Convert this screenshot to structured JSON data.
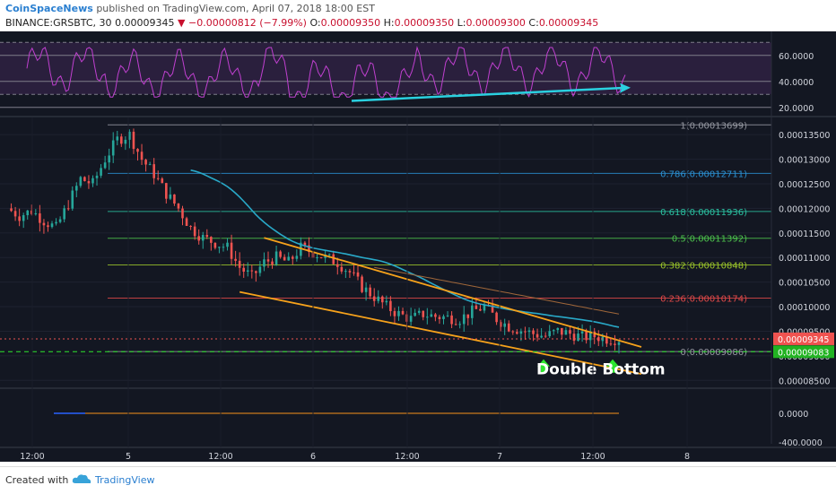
{
  "header": {
    "publisher": "CoinSpaceNews",
    "published_text": "published on TradingView.com, April 07, 2018 18:00 EST",
    "symbol": "BINANCE:GRSBTC, 30",
    "last": "0.00009345",
    "change": "−0.00000812 (−7.99%)",
    "o_label": "O:",
    "o_val": "0.00009350",
    "h_label": "H:",
    "h_val": "0.00009350",
    "l_label": "L:",
    "l_val": "0.00009300",
    "c_label": "C:",
    "c_val": "0.00009345"
  },
  "footer": {
    "created_with": "Created with",
    "brand": "TradingView"
  },
  "colors": {
    "bg": "#131722",
    "rsi": "#c040d0",
    "candle_up": "#26a69a",
    "candle_down": "#ef5350",
    "wedge": "#f7a21b",
    "ma": "#29a9c8",
    "annotation_arrow": "#2ad1e0",
    "bottom_arrow": "#2ee62e"
  },
  "chart_data": {
    "type": "candlestick",
    "symbol": "GRSBTC",
    "exchange": "BINANCE",
    "interval": "30",
    "x_ticks": [
      "12:00",
      "5",
      "12:00",
      "6",
      "12:00",
      "7",
      "12:00",
      "8"
    ],
    "y_ticks": [
      "0.00013500",
      "0.00013000",
      "0.00012500",
      "0.00012000",
      "0.00011500",
      "0.00011000",
      "0.00010500",
      "0.00010000",
      "0.00009500",
      "0.00009000",
      "0.00008500"
    ],
    "ylim": [
      8.45e-05,
      0.0001385
    ],
    "price_badges": {
      "last": "0.00009345",
      "support": "0.00009083"
    },
    "fibonacci": [
      {
        "label": "1(0.00013699)",
        "value": 0.00013699,
        "color": "#9598a1"
      },
      {
        "label": "0.786(0.00012711)",
        "value": 0.00012711,
        "color": "#2b8fd0"
      },
      {
        "label": "0.618(0.00011936)",
        "value": 0.00011936,
        "color": "#2bc0a0"
      },
      {
        "label": "0.5(0.00011392)",
        "value": 0.00011392,
        "color": "#4cc24c"
      },
      {
        "label": "0.382(0.00010848)",
        "value": 0.00010848,
        "color": "#9bc42a"
      },
      {
        "label": "0.236(0.00010174)",
        "value": 0.00010174,
        "color": "#e04848"
      },
      {
        "label": "0(0.00009086)",
        "value": 9.086e-05,
        "color": "#9598a1"
      }
    ],
    "annotation": "Double Bottom",
    "close_path": [
      [
        0,
        0.00012
      ],
      [
        3,
        0.0001185
      ],
      [
        6,
        0.0001195
      ],
      [
        9,
        0.0001175
      ],
      [
        12,
        0.000116
      ],
      [
        15,
        0.000121
      ],
      [
        18,
        0.000126
      ],
      [
        21,
        0.000125
      ],
      [
        24,
        0.00013
      ],
      [
        27,
        0.000134
      ],
      [
        30,
        0.000135
      ],
      [
        33,
        0.00013
      ],
      [
        36,
        0.000127
      ],
      [
        39,
        0.000123
      ],
      [
        42,
        0.00012
      ],
      [
        45,
        0.000116
      ],
      [
        48,
        0.000114
      ],
      [
        51,
        0.000113
      ],
      [
        54,
        0.000112
      ],
      [
        57,
        0.000108
      ],
      [
        60,
        0.000106
      ],
      [
        63,
        0.000109
      ],
      [
        66,
        0.00011
      ],
      [
        69,
        0.000109
      ],
      [
        72,
        0.000112
      ],
      [
        75,
        0.000111
      ],
      [
        78,
        0.00011
      ],
      [
        81,
        0.000109
      ],
      [
        84,
        0.000107
      ],
      [
        87,
        0.000104
      ],
      [
        90,
        0.000102
      ],
      [
        93,
        0.0001
      ],
      [
        96,
        9.85e-05
      ],
      [
        99,
        9.75e-05
      ],
      [
        102,
        9.85e-05
      ],
      [
        105,
        9.8e-05
      ],
      [
        108,
        9.78e-05
      ],
      [
        111,
        9.75e-05
      ],
      [
        114,
        9.9e-05
      ],
      [
        117,
        0.0001
      ],
      [
        120,
        9.75e-05
      ],
      [
        123,
        9.6e-05
      ],
      [
        126,
        9.52e-05
      ],
      [
        129,
        9.45e-05
      ],
      [
        132,
        9.4e-05
      ],
      [
        135,
        9.5e-05
      ],
      [
        138,
        9.45e-05
      ],
      [
        141,
        9.38e-05
      ],
      [
        144,
        9.4e-05
      ],
      [
        147,
        9.35e-05
      ],
      [
        150,
        9.34e-05
      ]
    ],
    "rsi": {
      "levels": [
        20,
        30,
        40,
        60,
        70
      ],
      "y_ticks": [
        "60.0000",
        "40.0000",
        "20.0000"
      ],
      "ylim": [
        15,
        75
      ]
    },
    "lower_pane": {
      "y_ticks": [
        "0.0000",
        "-400.0000"
      ]
    }
  }
}
